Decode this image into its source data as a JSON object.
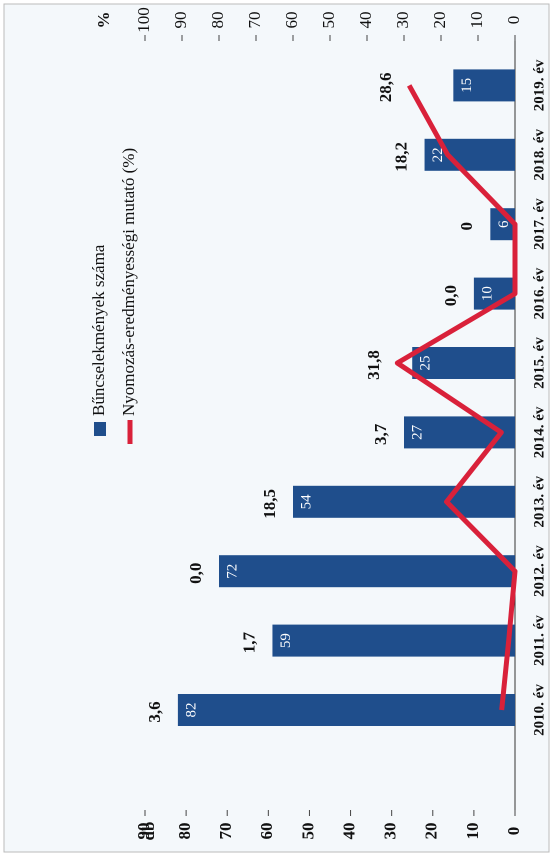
{
  "chart_data": {
    "type": "bar_line",
    "categories": [
      "2010. év",
      "2011. év",
      "2012. év",
      "2013. év",
      "2014. év",
      "2015. év",
      "2016. év",
      "2017. év",
      "2018. év",
      "2019. év"
    ],
    "ylabel": "db",
    "y2label": "%",
    "ylim": [
      0,
      90
    ],
    "yticks": [
      0,
      10,
      20,
      30,
      40,
      50,
      60,
      70,
      80,
      90
    ],
    "y2lim": [
      0,
      100
    ],
    "y2ticks": [
      0,
      10,
      20,
      30,
      40,
      50,
      60,
      70,
      80,
      90,
      100
    ],
    "series": [
      {
        "name": "Bűncselekmények száma",
        "color": "#1f4e8c",
        "values": [
          82,
          59,
          72,
          54,
          27,
          25,
          10,
          6,
          22,
          15
        ]
      },
      {
        "name": "Nyomozás-eredményességi mutató (%)",
        "color": "#d9213a",
        "axis": "y2",
        "values": [
          3.6,
          1.7,
          0.0,
          18.5,
          3.7,
          31.8,
          0.0,
          0,
          18.2,
          28.6
        ],
        "value_labels": [
          "3,6",
          "1,7",
          "0,0",
          "18,5",
          "3,7",
          "31,8",
          "0,0",
          "0",
          "18,2",
          "28,6"
        ]
      }
    ]
  }
}
